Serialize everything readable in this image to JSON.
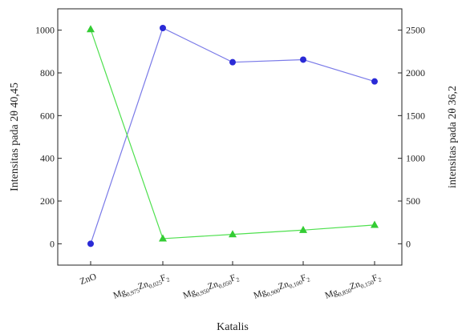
{
  "chart_data": {
    "type": "line",
    "title": "",
    "xlabel": "Katalis",
    "ylabel_left": "Intensitas pada 2θ  40,45",
    "ylabel_right": "intensitas pada 2θ  36,2",
    "categories": [
      {
        "base": "ZnO",
        "parts": []
      },
      {
        "parts": [
          {
            "t": "Mg",
            "s": "0,975"
          },
          {
            "t": "Zn",
            "s": "0,025"
          },
          {
            "t": "F",
            "s": "2"
          }
        ]
      },
      {
        "parts": [
          {
            "t": "Mg",
            "s": "0,950"
          },
          {
            "t": "Zn",
            "s": "0,050"
          },
          {
            "t": "F",
            "s": "2"
          }
        ]
      },
      {
        "parts": [
          {
            "t": "Mg",
            "s": "0,900"
          },
          {
            "t": "Zn",
            "s": "0,100"
          },
          {
            "t": "F",
            "s": "2"
          }
        ]
      },
      {
        "parts": [
          {
            "t": "Mg",
            "s": "0,850"
          },
          {
            "t": "Zn",
            "s": "0,150"
          },
          {
            "t": "F",
            "s": "2"
          }
        ]
      }
    ],
    "left_axis": {
      "ylim": [
        -100,
        1100
      ],
      "ticks": [
        0,
        200,
        400,
        600,
        800,
        1000
      ]
    },
    "right_axis": {
      "ylim": [
        -250,
        2750
      ],
      "ticks": [
        0,
        500,
        1000,
        1500,
        2000,
        2500
      ]
    },
    "series": [
      {
        "axis": "left",
        "marker": "circle",
        "color": "#2a2ad6",
        "line_color": "#7a7ae8",
        "values": [
          0,
          1010,
          850,
          862,
          760
        ]
      },
      {
        "axis": "right",
        "marker": "triangle",
        "color": "#33cc33",
        "line_color": "#4ee04e",
        "values": [
          2510,
          60,
          110,
          160,
          220
        ]
      }
    ]
  }
}
